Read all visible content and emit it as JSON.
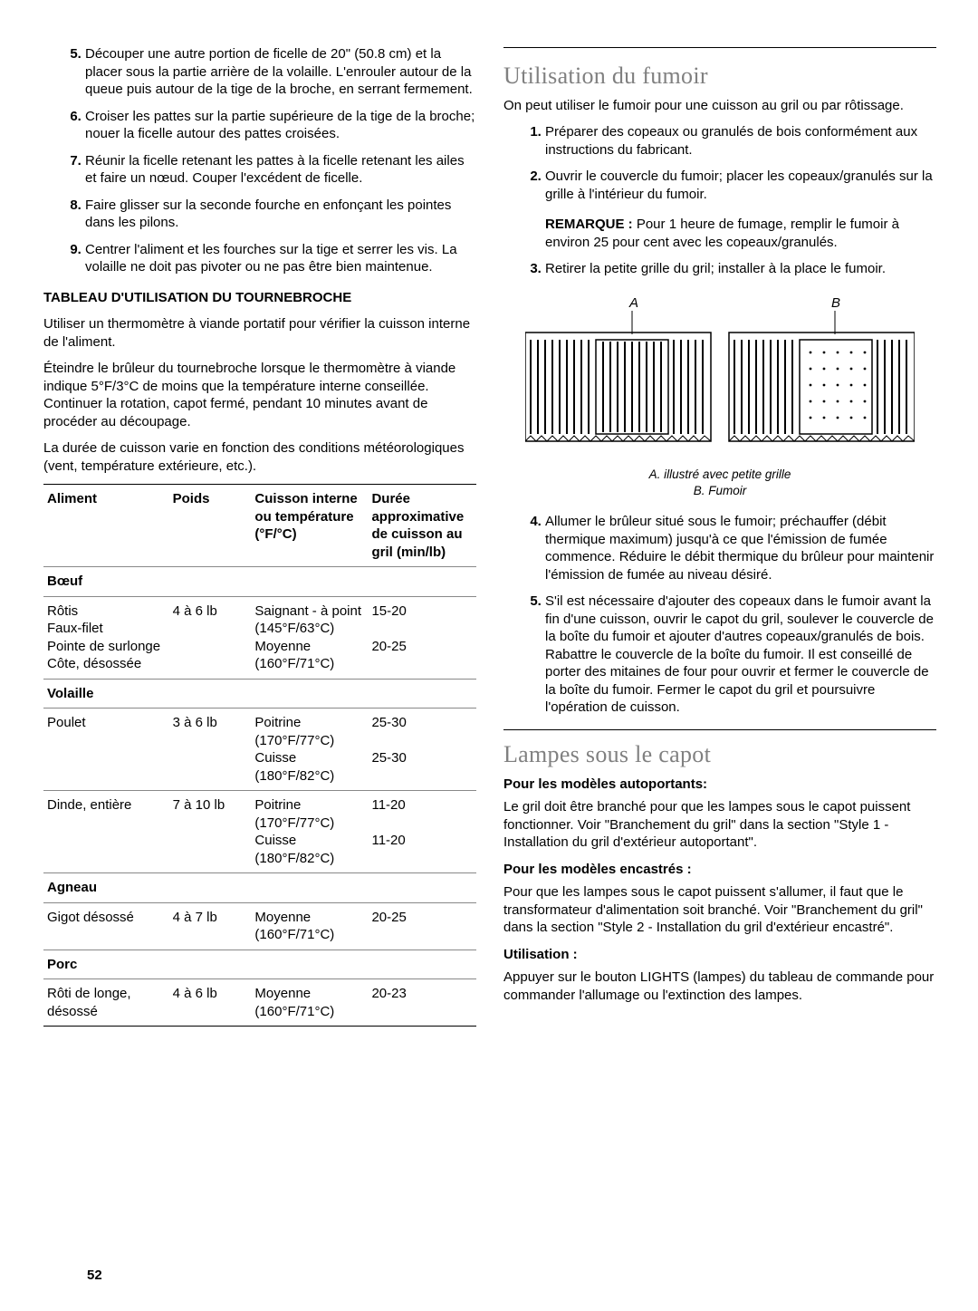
{
  "page_number": "52",
  "left": {
    "steps_start": 5,
    "steps": [
      "Découper une autre portion de ficelle de 20\" (50.8 cm) et la placer sous la partie arrière de la volaille. L'enrouler autour de la queue puis autour de la tige de la broche, en serrant fermement.",
      "Croiser les pattes sur la partie supérieure de la tige de la broche; nouer la ficelle autour des pattes croisées.",
      "Réunir la ficelle retenant les pattes à la ficelle retenant les ailes et faire un nœud. Couper l'excédent de ficelle.",
      "Faire glisser sur la seconde fourche en enfonçant les pointes dans les pilons.",
      "Centrer l'aliment et les fourches sur la tige et serrer les vis. La volaille ne doit pas pivoter ou ne pas être bien maintenue."
    ],
    "table_heading": "TABLEAU D'UTILISATION DU TOURNEBROCHE",
    "para1": "Utiliser un thermomètre à viande portatif pour vérifier la cuisson interne de l'aliment.",
    "para2": "Éteindre le brûleur du tournebroche lorsque le thermomètre à viande indique 5°F/3°C de moins que la température interne conseillée. Continuer la rotation, capot fermé, pendant 10 minutes avant de procéder au découpage.",
    "para3": "La durée de cuisson varie en fonction des conditions météorologiques (vent, température extérieure, etc.).",
    "table": {
      "headers": [
        "Aliment",
        "Poids",
        "Cuisson interne ou température (°F/°C)",
        "Durée approxima­tive de cuisson au gril (min/lb)"
      ],
      "rows": [
        {
          "type": "cat",
          "cells": [
            "Bœuf",
            "",
            "",
            ""
          ]
        },
        {
          "type": "data",
          "cells": [
            "Rôtis\nFaux-filet\nPointe de surlonge\nCôte, désossée",
            "4 à 6 lb",
            "Saignant - à point (145°F/63°C)\nMoyenne (160°F/71°C)",
            "15-20\n\n20-25"
          ]
        },
        {
          "type": "cat",
          "cells": [
            "Volaille",
            "",
            "",
            ""
          ]
        },
        {
          "type": "data",
          "cells": [
            "Poulet",
            "3 à 6 lb",
            "Poitrine (170°F/77°C)\nCuisse (180°F/82°C)",
            "25-30\n\n25-30"
          ]
        },
        {
          "type": "data",
          "cells": [
            "Dinde, entière",
            "7 à 10 lb",
            "Poitrine (170°F/77°C)\nCuisse (180°F/82°C)",
            "11-20\n\n11-20"
          ]
        },
        {
          "type": "cat",
          "cells": [
            "Agneau",
            "",
            "",
            ""
          ]
        },
        {
          "type": "data",
          "cells": [
            "Gigot désossé",
            "4 à 7 lb",
            "Moyenne (160°F/71°C)",
            "20-25"
          ]
        },
        {
          "type": "cat",
          "cells": [
            "Porc",
            "",
            "",
            ""
          ]
        },
        {
          "type": "data",
          "cells": [
            "Rôti de longe, désossé",
            "4 à 6 lb",
            "Moyenne (160°F/71°C)",
            "20-23"
          ]
        }
      ]
    }
  },
  "right": {
    "h1": "Utilisation du fumoir",
    "intro": "On peut utiliser le fumoir pour une cuisson au gril ou par rôtissage.",
    "steps1": [
      "Préparer des copeaux ou granulés de bois conformément aux instructions du fabricant.",
      "Ouvrir le couvercle du fumoir; placer les copeaux/granulés sur la grille à l'intérieur du fumoir."
    ],
    "remark_label": "REMARQUE :",
    "remark_text": " Pour 1 heure de fumage, remplir le fumoir à environ 25 pour cent avec les copeaux/granulés.",
    "steps2": [
      "Retirer la petite grille du gril; installer à la place le fumoir."
    ],
    "label_A": "A",
    "label_B": "B",
    "caption": "A. illustré avec petite grille\nB. Fumoir",
    "steps3": [
      "Allumer le brûleur situé sous le fumoir; préchauffer (débit thermique maximum) jusqu'à ce que l'émission de fumée commence. Réduire le débit thermique du brûleur pour maintenir l'émission de fumée au niveau désiré.",
      "S'il est nécessaire d'ajouter des copeaux dans le fumoir avant la fin d'une cuisson, ouvrir le capot du gril, soulever le couvercle de la boîte du fumoir et ajouter d'autres copeaux/granulés de bois. Rabattre le couvercle de la boîte du fumoir. Il est conseillé de porter des mitaines de four pour ouvrir et fermer le couvercle de la boîte du fumoir.  Fermer le capot du gril et poursuivre l'opération de cuisson."
    ],
    "h2": "Lampes sous le capot",
    "sub1": "Pour les modèles autoportants:",
    "p1": "Le gril doit être branché pour que les lampes sous le capot puissent fonctionner.  Voir \"Branchement du gril\" dans la section \"Style 1 - Installation du gril d'extérieur autoportant\".",
    "sub2": "Pour les modèles encastrés :",
    "p2": "Pour que les lampes sous le capot puissent s'allumer, il faut que le transformateur d'alimentation soit branché. Voir \"Branchement du gril\" dans la section \"Style 2 - Installation du gril d'extérieur encastré\".",
    "sub3": "Utilisation :",
    "p3": "Appuyer sur le bouton LIGHTS (lampes) du tableau de commande pour commander l'allumage ou l'extinction des lampes."
  },
  "colors": {
    "heading_gray": "#808080",
    "text": "#000000",
    "bg": "#ffffff"
  }
}
